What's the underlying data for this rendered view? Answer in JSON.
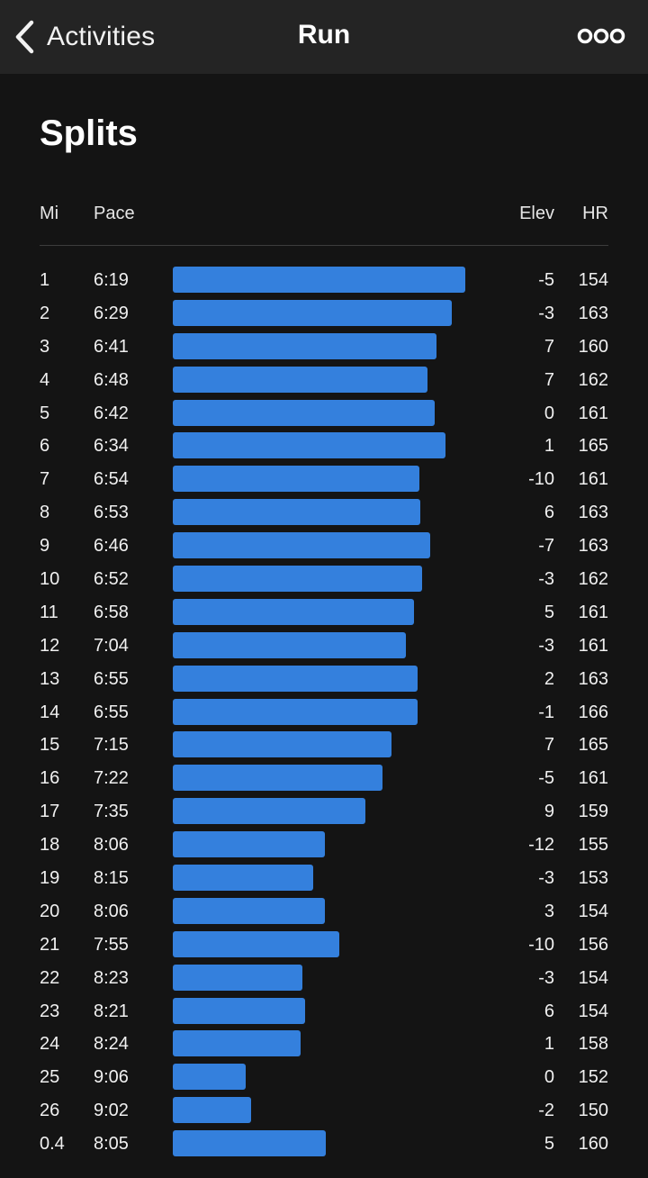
{
  "nav": {
    "back_label": "Activities",
    "title": "Run",
    "more_icon": "more-options-icon"
  },
  "splits": {
    "title": "Splits",
    "headers": {
      "mi": "Mi",
      "pace": "Pace",
      "elev": "Elev",
      "hr": "HR"
    },
    "bar_color": "#3480dd",
    "rows": [
      {
        "mi": "1",
        "pace": "6:19",
        "elev": "-5",
        "hr": "154"
      },
      {
        "mi": "2",
        "pace": "6:29",
        "elev": "-3",
        "hr": "163"
      },
      {
        "mi": "3",
        "pace": "6:41",
        "elev": "7",
        "hr": "160"
      },
      {
        "mi": "4",
        "pace": "6:48",
        "elev": "7",
        "hr": "162"
      },
      {
        "mi": "5",
        "pace": "6:42",
        "elev": "0",
        "hr": "161"
      },
      {
        "mi": "6",
        "pace": "6:34",
        "elev": "1",
        "hr": "165"
      },
      {
        "mi": "7",
        "pace": "6:54",
        "elev": "-10",
        "hr": "161"
      },
      {
        "mi": "8",
        "pace": "6:53",
        "elev": "6",
        "hr": "163"
      },
      {
        "mi": "9",
        "pace": "6:46",
        "elev": "-7",
        "hr": "163"
      },
      {
        "mi": "10",
        "pace": "6:52",
        "elev": "-3",
        "hr": "162"
      },
      {
        "mi": "11",
        "pace": "6:58",
        "elev": "5",
        "hr": "161"
      },
      {
        "mi": "12",
        "pace": "7:04",
        "elev": "-3",
        "hr": "161"
      },
      {
        "mi": "13",
        "pace": "6:55",
        "elev": "2",
        "hr": "163"
      },
      {
        "mi": "14",
        "pace": "6:55",
        "elev": "-1",
        "hr": "166"
      },
      {
        "mi": "15",
        "pace": "7:15",
        "elev": "7",
        "hr": "165"
      },
      {
        "mi": "16",
        "pace": "7:22",
        "elev": "-5",
        "hr": "161"
      },
      {
        "mi": "17",
        "pace": "7:35",
        "elev": "9",
        "hr": "159"
      },
      {
        "mi": "18",
        "pace": "8:06",
        "elev": "-12",
        "hr": "155"
      },
      {
        "mi": "19",
        "pace": "8:15",
        "elev": "-3",
        "hr": "153"
      },
      {
        "mi": "20",
        "pace": "8:06",
        "elev": "3",
        "hr": "154"
      },
      {
        "mi": "21",
        "pace": "7:55",
        "elev": "-10",
        "hr": "156"
      },
      {
        "mi": "22",
        "pace": "8:23",
        "elev": "-3",
        "hr": "154"
      },
      {
        "mi": "23",
        "pace": "8:21",
        "elev": "6",
        "hr": "154"
      },
      {
        "mi": "24",
        "pace": "8:24",
        "elev": "1",
        "hr": "158"
      },
      {
        "mi": "25",
        "pace": "9:06",
        "elev": "0",
        "hr": "152"
      },
      {
        "mi": "26",
        "pace": "9:02",
        "elev": "-2",
        "hr": "150"
      },
      {
        "mi": "0.4",
        "pace": "8:05",
        "elev": "5",
        "hr": "160"
      }
    ]
  }
}
